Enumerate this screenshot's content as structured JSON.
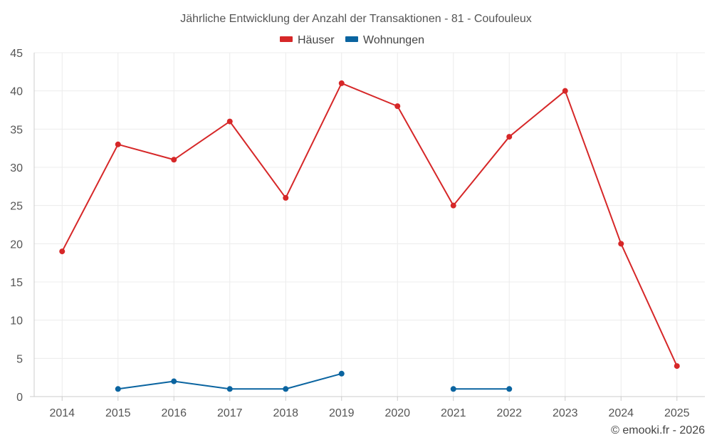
{
  "chart_data": {
    "type": "line",
    "title": "Jährliche Entwicklung der Anzahl der Transaktionen - 81 - Coufouleux",
    "categories": [
      "2014",
      "2015",
      "2016",
      "2017",
      "2018",
      "2019",
      "2020",
      "2021",
      "2022",
      "2023",
      "2024",
      "2025"
    ],
    "series": [
      {
        "name": "Häuser",
        "color": "#d62728",
        "values": [
          19,
          33,
          31,
          36,
          26,
          41,
          38,
          25,
          34,
          40,
          20,
          4
        ]
      },
      {
        "name": "Wohnungen",
        "color": "#0a64a0",
        "values": [
          null,
          1,
          2,
          1,
          1,
          3,
          null,
          1,
          1,
          null,
          null,
          null
        ]
      }
    ],
    "ylim": [
      0,
      45
    ],
    "yticks": [
      0,
      5,
      10,
      15,
      20,
      25,
      30,
      35,
      40,
      45
    ],
    "xlabel": "",
    "ylabel": "",
    "grid": true,
    "legend_position": "top-center"
  },
  "footer": {
    "credit": "© emooki.fr - 2026"
  }
}
